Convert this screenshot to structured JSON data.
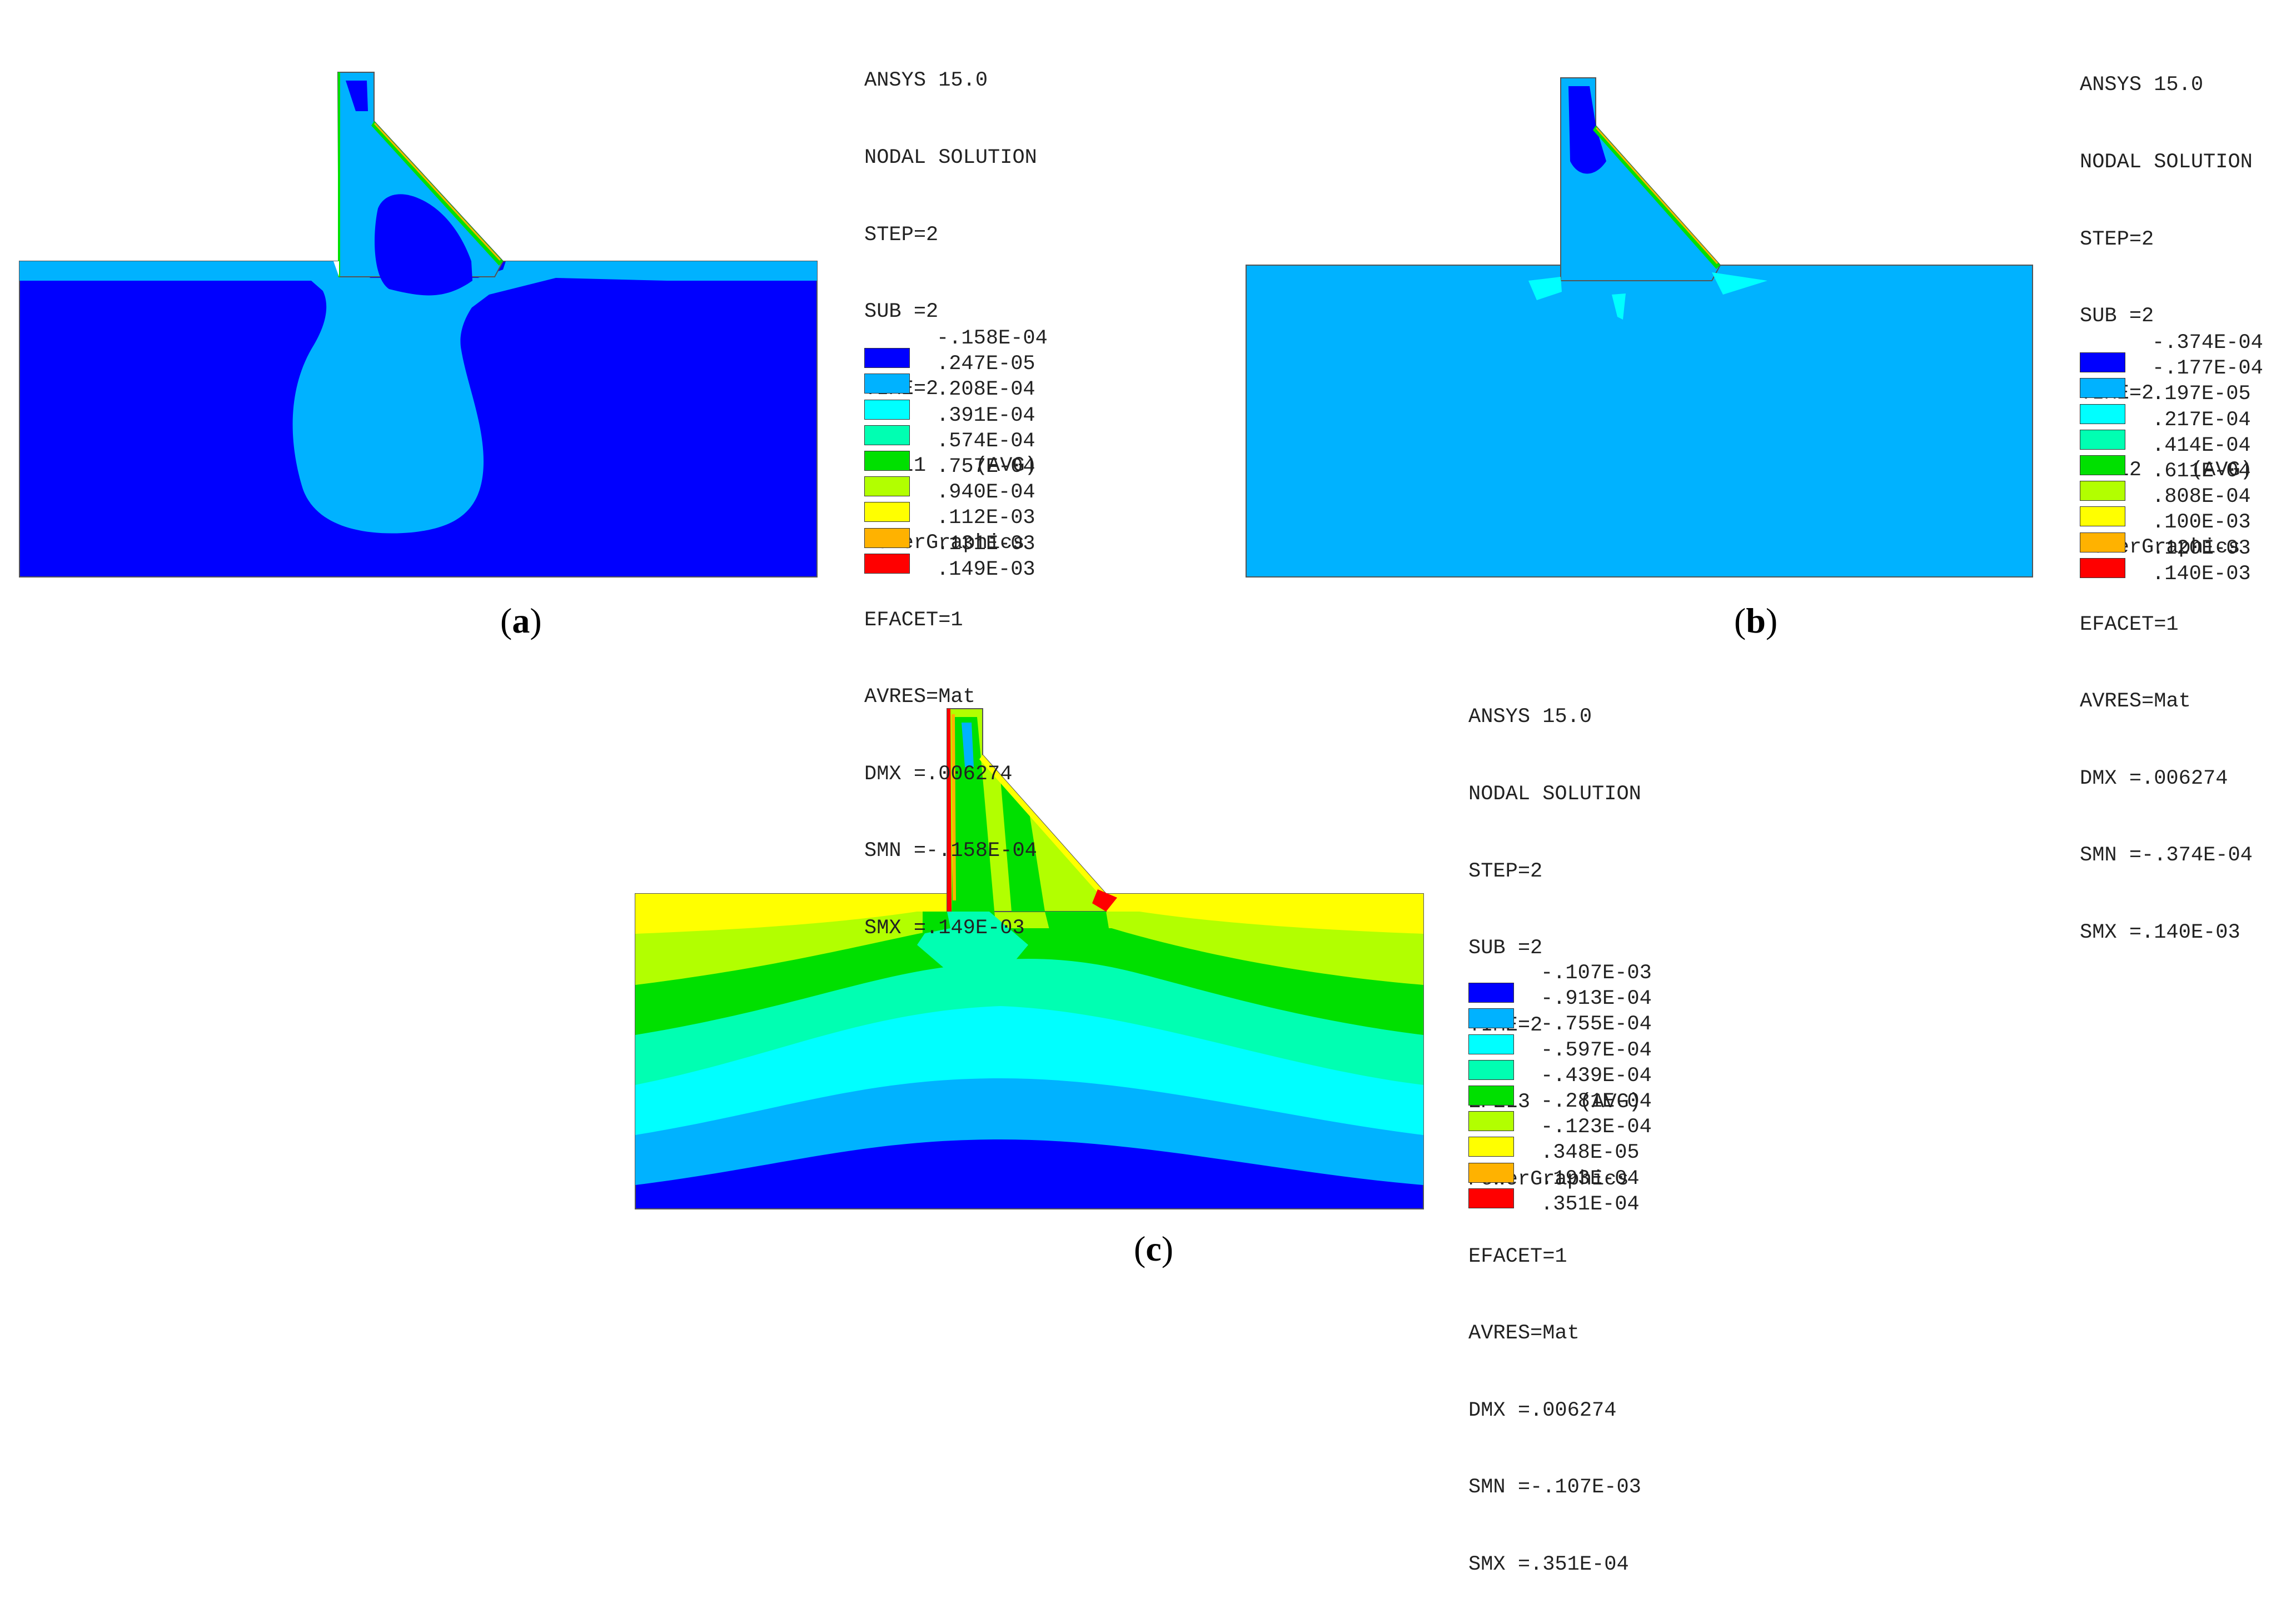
{
  "colors": [
    "#0000ff",
    "#00b2ff",
    "#00ffff",
    "#00ffb2",
    "#00e000",
    "#b2ff00",
    "#ffff00",
    "#ffb200",
    "#ff0000"
  ],
  "panels": [
    {
      "label": "a",
      "info": [
        "ANSYS 15.0",
        "NODAL SOLUTION",
        "STEP=2",
        "SUB =2",
        "TIME=2",
        "EPEL1    (AVG)",
        "PowerGraphics",
        "EFACET=1",
        "AVRES=Mat",
        "DMX =.006274",
        "SMN =-.158E-04",
        "SMX =.149E-03"
      ],
      "legend_min": "-.158E-04",
      "legend": [
        ".247E-05",
        ".208E-04",
        ".391E-04",
        ".574E-04",
        ".757E-04",
        ".940E-04",
        ".112E-03",
        ".131E-03",
        ".149E-03"
      ]
    },
    {
      "label": "b",
      "info": [
        "ANSYS 15.0",
        "NODAL SOLUTION",
        "STEP=2",
        "SUB =2",
        "TIME=2",
        "EPEL2    (AVG)",
        "PowerGraphics",
        "EFACET=1",
        "AVRES=Mat",
        "DMX =.006274",
        "SMN =-.374E-04",
        "SMX =.140E-03"
      ],
      "legend_min": "-.374E-04",
      "legend": [
        "-.177E-04",
        ".197E-05",
        ".217E-04",
        ".414E-04",
        ".611E-04",
        ".808E-04",
        ".100E-03",
        ".120E-03",
        ".140E-03"
      ]
    },
    {
      "label": "c",
      "info": [
        "ANSYS 15.0",
        "NODAL SOLUTION",
        "STEP=2",
        "SUB =2",
        "TIME=2",
        "EPEL3    (AVG)",
        "PowerGraphics",
        "EFACET=1",
        "AVRES=Mat",
        "DMX =.006274",
        "SMN =-.107E-03",
        "SMX =.351E-04"
      ],
      "legend_min": "-.107E-03",
      "legend": [
        "-.913E-04",
        "-.755E-04",
        "-.597E-04",
        "-.439E-04",
        "-.281E-04",
        "-.123E-04",
        ".348E-05",
        ".193E-04",
        ".351E-04"
      ]
    }
  ]
}
